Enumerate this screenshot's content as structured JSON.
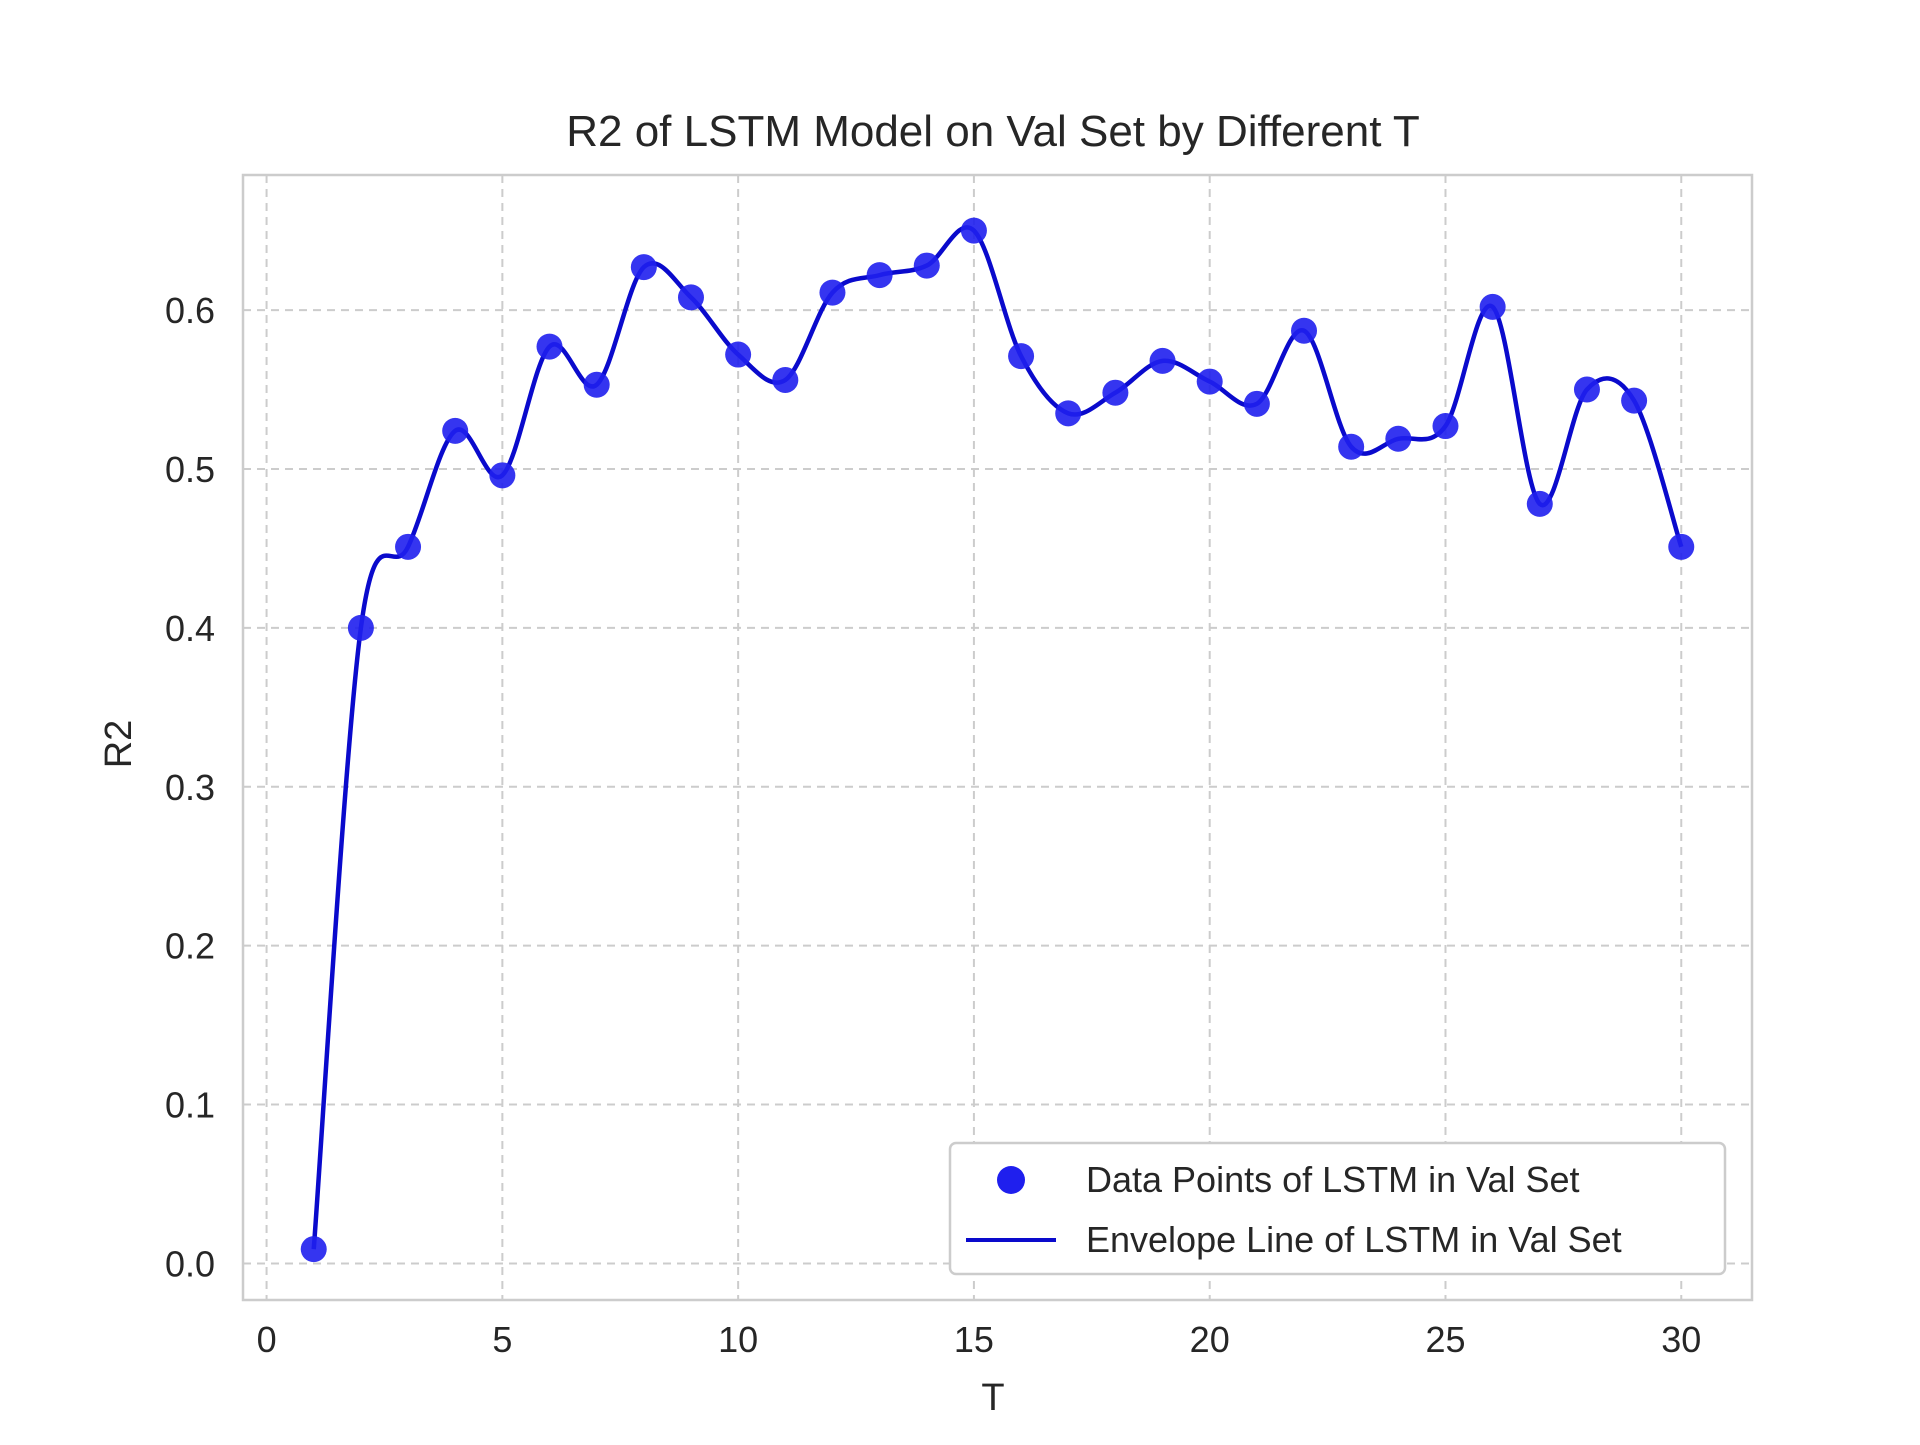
{
  "chart_data": {
    "type": "line",
    "title": "R2 of LSTM Model on Val Set by Different T",
    "xlabel": "T",
    "ylabel": "R2",
    "xlim": [
      -0.5,
      31.5
    ],
    "ylim": [
      -0.023,
      0.685
    ],
    "xticks": [
      0,
      5,
      10,
      15,
      20,
      25,
      30
    ],
    "yticks": [
      0.0,
      0.1,
      0.2,
      0.3,
      0.4,
      0.5,
      0.6
    ],
    "xtick_labels": [
      "0",
      "5",
      "10",
      "15",
      "20",
      "25",
      "30"
    ],
    "ytick_labels": [
      "0.0",
      "0.1",
      "0.2",
      "0.3",
      "0.4",
      "0.5",
      "0.6"
    ],
    "grid": true,
    "legend_position": "bottom-right",
    "series": [
      {
        "name": "Data Points of LSTM in Val Set",
        "kind": "scatter",
        "color": "#1f1fee",
        "x": [
          1,
          2,
          3,
          4,
          5,
          6,
          7,
          8,
          9,
          10,
          11,
          12,
          13,
          14,
          15,
          16,
          17,
          18,
          19,
          20,
          21,
          22,
          23,
          24,
          25,
          26,
          27,
          28,
          29,
          30
        ],
        "y": [
          0.009,
          0.4,
          0.451,
          0.524,
          0.496,
          0.577,
          0.553,
          0.627,
          0.608,
          0.572,
          0.556,
          0.611,
          0.622,
          0.628,
          0.65,
          0.571,
          0.535,
          0.548,
          0.568,
          0.555,
          0.541,
          0.587,
          0.514,
          0.519,
          0.527,
          0.602,
          0.478,
          0.55,
          0.543,
          0.451
        ]
      },
      {
        "name": "Envelope Line of LSTM in Val Set",
        "kind": "line",
        "color": "#0a0acc",
        "x": [
          1,
          2,
          3,
          4,
          5,
          6,
          7,
          8,
          9,
          10,
          11,
          12,
          13,
          14,
          15,
          16,
          17,
          18,
          19,
          20,
          21,
          22,
          23,
          24,
          25,
          26,
          27,
          28,
          29,
          30
        ],
        "y": [
          0.009,
          0.4,
          0.451,
          0.524,
          0.496,
          0.577,
          0.553,
          0.627,
          0.608,
          0.572,
          0.556,
          0.611,
          0.622,
          0.628,
          0.65,
          0.571,
          0.535,
          0.548,
          0.568,
          0.555,
          0.541,
          0.587,
          0.514,
          0.519,
          0.527,
          0.602,
          0.478,
          0.55,
          0.543,
          0.451
        ]
      }
    ]
  }
}
